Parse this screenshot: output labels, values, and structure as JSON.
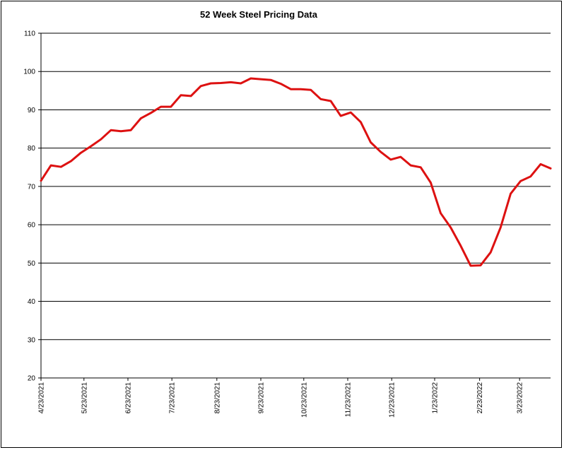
{
  "chart_data": {
    "type": "line",
    "title": "52 Week Steel Pricing Data",
    "xlabel": "",
    "ylabel": "",
    "ylim": [
      20,
      110
    ],
    "yticks": [
      20,
      30,
      40,
      50,
      60,
      70,
      80,
      90,
      100,
      110
    ],
    "grid": true,
    "legend": "none",
    "line_color": "#dd1111",
    "x_tick_labels": [
      "4/23/2021",
      "5/23/2021",
      "6/23/2021",
      "7/23/2021",
      "8/23/2021",
      "9/23/2021",
      "10/23/2021",
      "11/23/2021",
      "12/23/2021",
      "1/23/2022",
      "2/23/2022",
      "3/23/2022"
    ],
    "x_tick_week_index": [
      0,
      4.3,
      8.7,
      13.1,
      17.6,
      22,
      26.3,
      30.7,
      35.1,
      39.4,
      43.9,
      47.9
    ],
    "series": [
      {
        "name": "",
        "values": [
          71.5,
          75.5,
          75.1,
          76.6,
          78.8,
          80.5,
          82.3,
          84.7,
          84.4,
          84.7,
          87.8,
          89.2,
          90.8,
          90.8,
          93.8,
          93.6,
          96.2,
          96.9,
          97.0,
          97.2,
          96.9,
          98.2,
          98.0,
          97.8,
          96.8,
          95.4,
          95.4,
          95.2,
          92.8,
          92.3,
          88.4,
          89.3,
          86.8,
          81.5,
          79.0,
          77.0,
          77.7,
          75.5,
          75.0,
          71.0,
          63.0,
          59.3,
          54.5,
          49.3,
          49.4,
          52.8,
          59.3,
          68.1,
          71.4,
          72.6,
          75.8,
          74.7
        ]
      }
    ]
  }
}
